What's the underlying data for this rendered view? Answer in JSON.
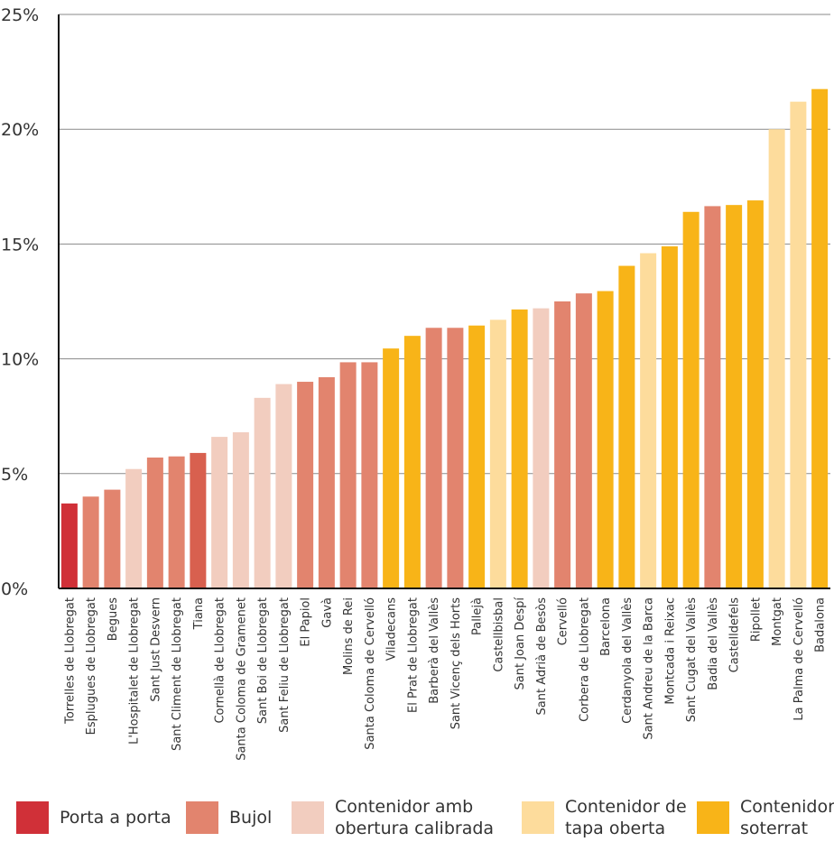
{
  "chart_data": {
    "type": "bar",
    "ylim": [
      0,
      25
    ],
    "yticks": [
      "0%",
      "5%",
      "10%",
      "15%",
      "20%",
      "25%"
    ],
    "grid": true,
    "legend_position": "bottom",
    "bars": [
      {
        "label": "Torrelles de Llobregat",
        "value": 3.7,
        "group": "Porta a porta"
      },
      {
        "label": "Esplugues de Llobregat",
        "value": 4.0,
        "group": "Bujol"
      },
      {
        "label": "Begues",
        "value": 4.3,
        "group": "Bujol"
      },
      {
        "label": "L'Hospitalet de Llobregat",
        "value": 5.2,
        "group": "Contenidor amb obertura calibrada"
      },
      {
        "label": "Sant Just Desvern",
        "value": 5.7,
        "group": "Bujol"
      },
      {
        "label": "Sant Climent de Llobregat",
        "value": 5.75,
        "group": "Bujol"
      },
      {
        "label": "Tiana",
        "value": 5.9,
        "group": "Bujol"
      },
      {
        "label": "Cornellà de Llobregat",
        "value": 6.6,
        "group": "Contenidor amb obertura calibrada"
      },
      {
        "label": "Santa Coloma de Gramenet",
        "value": 6.8,
        "group": "Contenidor amb obertura calibrada"
      },
      {
        "label": "Sant Boi de Llobregat",
        "value": 8.3,
        "group": "Contenidor amb obertura calibrada"
      },
      {
        "label": "Sant Feliu de Llobregat",
        "value": 8.9,
        "group": "Contenidor amb obertura calibrada"
      },
      {
        "label": "El Papiol",
        "value": 9.0,
        "group": "Bujol"
      },
      {
        "label": "Gavà",
        "value": 9.2,
        "group": "Bujol"
      },
      {
        "label": "Molins de Rei",
        "value": 9.85,
        "group": "Bujol"
      },
      {
        "label": "Santa Coloma de Cervelló",
        "value": 9.85,
        "group": "Bujol"
      },
      {
        "label": "Viladecans",
        "value": 10.45,
        "group": "Contenidor soterrat"
      },
      {
        "label": "El Prat de Llobregat",
        "value": 11.0,
        "group": "Contenidor soterrat"
      },
      {
        "label": "Barberà del Vallès",
        "value": 11.35,
        "group": "Bujol"
      },
      {
        "label": "Sant Vicenç dels Horts",
        "value": 11.35,
        "group": "Bujol"
      },
      {
        "label": "Pallejà",
        "value": 11.45,
        "group": "Contenidor soterrat"
      },
      {
        "label": "Castellbisbal",
        "value": 11.7,
        "group": "Contenidor de tapa oberta"
      },
      {
        "label": "Sant Joan Despí",
        "value": 12.15,
        "group": "Contenidor soterrat"
      },
      {
        "label": "Sant Adrià de Besòs",
        "value": 12.2,
        "group": "Contenidor amb obertura calibrada"
      },
      {
        "label": "Cervelló",
        "value": 12.5,
        "group": "Bujol"
      },
      {
        "label": "Corbera de Llobregat",
        "value": 12.85,
        "group": "Bujol"
      },
      {
        "label": "Barcelona",
        "value": 12.95,
        "group": "Contenidor soterrat"
      },
      {
        "label": "Cerdanyola del Vallès",
        "value": 14.05,
        "group": "Contenidor soterrat"
      },
      {
        "label": "Sant Andreu de la Barca",
        "value": 14.6,
        "group": "Contenidor de tapa oberta"
      },
      {
        "label": "Montcada i Reixac",
        "value": 14.9,
        "group": "Contenidor soterrat"
      },
      {
        "label": "Sant Cugat del Vallès",
        "value": 16.4,
        "group": "Contenidor soterrat"
      },
      {
        "label": "Badia del Vallès",
        "value": 16.65,
        "group": "Bujol"
      },
      {
        "label": "Castelldefels",
        "value": 16.7,
        "group": "Contenidor soterrat"
      },
      {
        "label": "Ripollet",
        "value": 16.9,
        "group": "Contenidor soterrat"
      },
      {
        "label": "Montgat",
        "value": 20.0,
        "group": "Contenidor de tapa oberta"
      },
      {
        "label": "La Palma de Cervelló",
        "value": 21.2,
        "group": "Contenidor de tapa oberta"
      },
      {
        "label": "Badalona",
        "value": 21.75,
        "group": "Contenidor soterrat"
      }
    ],
    "groups": [
      {
        "name": "Porta a porta",
        "color": "#d03038"
      },
      {
        "name": "Bujol",
        "color": "#e2846e"
      },
      {
        "name": "Contenidor amb obertura calibrada",
        "color": "#f2cdbf"
      },
      {
        "name": "Contenidor de tapa oberta",
        "color": "#fddc9c"
      },
      {
        "name": "Contenidor soterrat",
        "color": "#f8b418"
      }
    ],
    "bar_color_overrides": {
      "Tiana": "#d8604f"
    }
  },
  "legend": [
    {
      "label": "Porta a porta",
      "color": "#d03038"
    },
    {
      "label": "Bujol",
      "color": "#e2846e"
    },
    {
      "label": "Contenidor amb\nobertura calibrada",
      "color": "#f2cdbf"
    },
    {
      "label": "Contenidor de\ntapa oberta",
      "color": "#fddc9c"
    },
    {
      "label": "Contenidor\nsoterrat",
      "color": "#f8b418"
    }
  ]
}
